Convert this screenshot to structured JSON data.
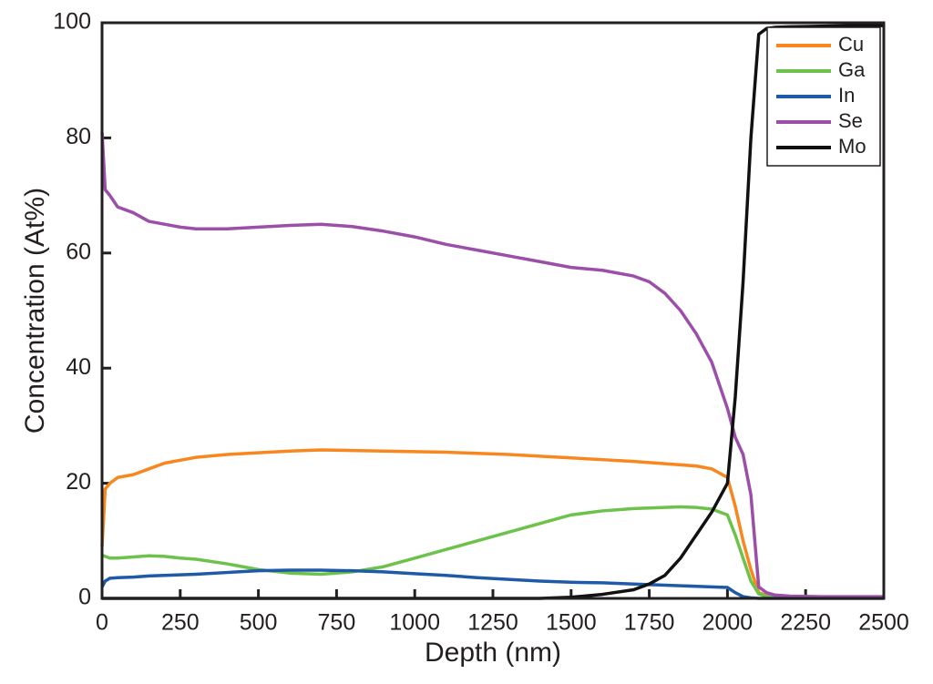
{
  "chart_data": {
    "type": "line",
    "x_label": "Depth (nm)",
    "y_label": "Concentration (At%)",
    "x": [
      0,
      10,
      25,
      50,
      100,
      150,
      200,
      250,
      300,
      400,
      500,
      600,
      700,
      800,
      900,
      1000,
      1100,
      1200,
      1300,
      1400,
      1500,
      1600,
      1700,
      1750,
      1800,
      1850,
      1900,
      1950,
      2000,
      2025,
      2050,
      2075,
      2100,
      2125,
      2150,
      2200,
      2300,
      2400,
      2500
    ],
    "series": [
      {
        "name": "Cu",
        "color": "#f7871e",
        "values": [
          9,
          19,
          20,
          21,
          21.5,
          22.5,
          23.5,
          24,
          24.5,
          25,
          25.3,
          25.6,
          25.8,
          25.7,
          25.6,
          25.5,
          25.4,
          25.2,
          25,
          24.7,
          24.4,
          24.1,
          23.8,
          23.6,
          23.4,
          23.2,
          23,
          22.5,
          21,
          16,
          10,
          5,
          1,
          0.5,
          0.3,
          0.2,
          0.2,
          0.2,
          0.2
        ]
      },
      {
        "name": "Ga",
        "color": "#6cc24a",
        "values": [
          7.5,
          7.3,
          7,
          7,
          7.2,
          7.4,
          7.3,
          7,
          6.8,
          6,
          5,
          4.4,
          4.2,
          4.6,
          5.5,
          7,
          8.5,
          10,
          11.5,
          13,
          14.5,
          15.2,
          15.6,
          15.7,
          15.8,
          15.9,
          15.8,
          15.5,
          14.5,
          11,
          7,
          3,
          0.8,
          0.3,
          0.2,
          0.2,
          0.2,
          0.2,
          0.2
        ]
      },
      {
        "name": "In",
        "color": "#1f5aa6",
        "values": [
          2,
          3,
          3.5,
          3.6,
          3.7,
          3.9,
          4,
          4.1,
          4.2,
          4.5,
          4.8,
          4.9,
          4.9,
          4.8,
          4.6,
          4.3,
          4,
          3.6,
          3.3,
          3,
          2.8,
          2.7,
          2.5,
          2.4,
          2.3,
          2.2,
          2.1,
          2,
          1.9,
          1,
          0.3,
          0.1,
          0,
          0,
          0,
          0,
          0,
          0,
          0
        ]
      },
      {
        "name": "Se",
        "color": "#9b4fa8",
        "values": [
          81,
          71,
          70,
          68,
          67,
          65.5,
          65,
          64.5,
          64.2,
          64.2,
          64.5,
          64.8,
          65,
          64.6,
          63.8,
          62.8,
          61.5,
          60.5,
          59.5,
          58.5,
          57.5,
          57,
          56,
          55,
          53,
          50,
          46,
          41,
          33,
          28,
          25,
          18,
          2,
          1,
          0.6,
          0.4,
          0.3,
          0.3,
          0.3
        ]
      },
      {
        "name": "Mo",
        "color": "#111111",
        "values": [
          0,
          0,
          0,
          0,
          0,
          0,
          0,
          0,
          0,
          0,
          0,
          0,
          0,
          0,
          0,
          0,
          0,
          0,
          0,
          0,
          0.2,
          0.7,
          1.5,
          2.5,
          4,
          7,
          11,
          15,
          20,
          35,
          55,
          80,
          98,
          99,
          99.2,
          99.3,
          99.4,
          99.5,
          99.5
        ]
      }
    ],
    "xlim": [
      0,
      2500
    ],
    "xticks": [
      0,
      250,
      500,
      750,
      1000,
      1250,
      1500,
      1750,
      2000,
      2250,
      2500
    ],
    "ylim": [
      0,
      100
    ],
    "yticks": [
      0,
      20,
      40,
      60,
      80,
      100
    ],
    "legend": "top-right"
  }
}
